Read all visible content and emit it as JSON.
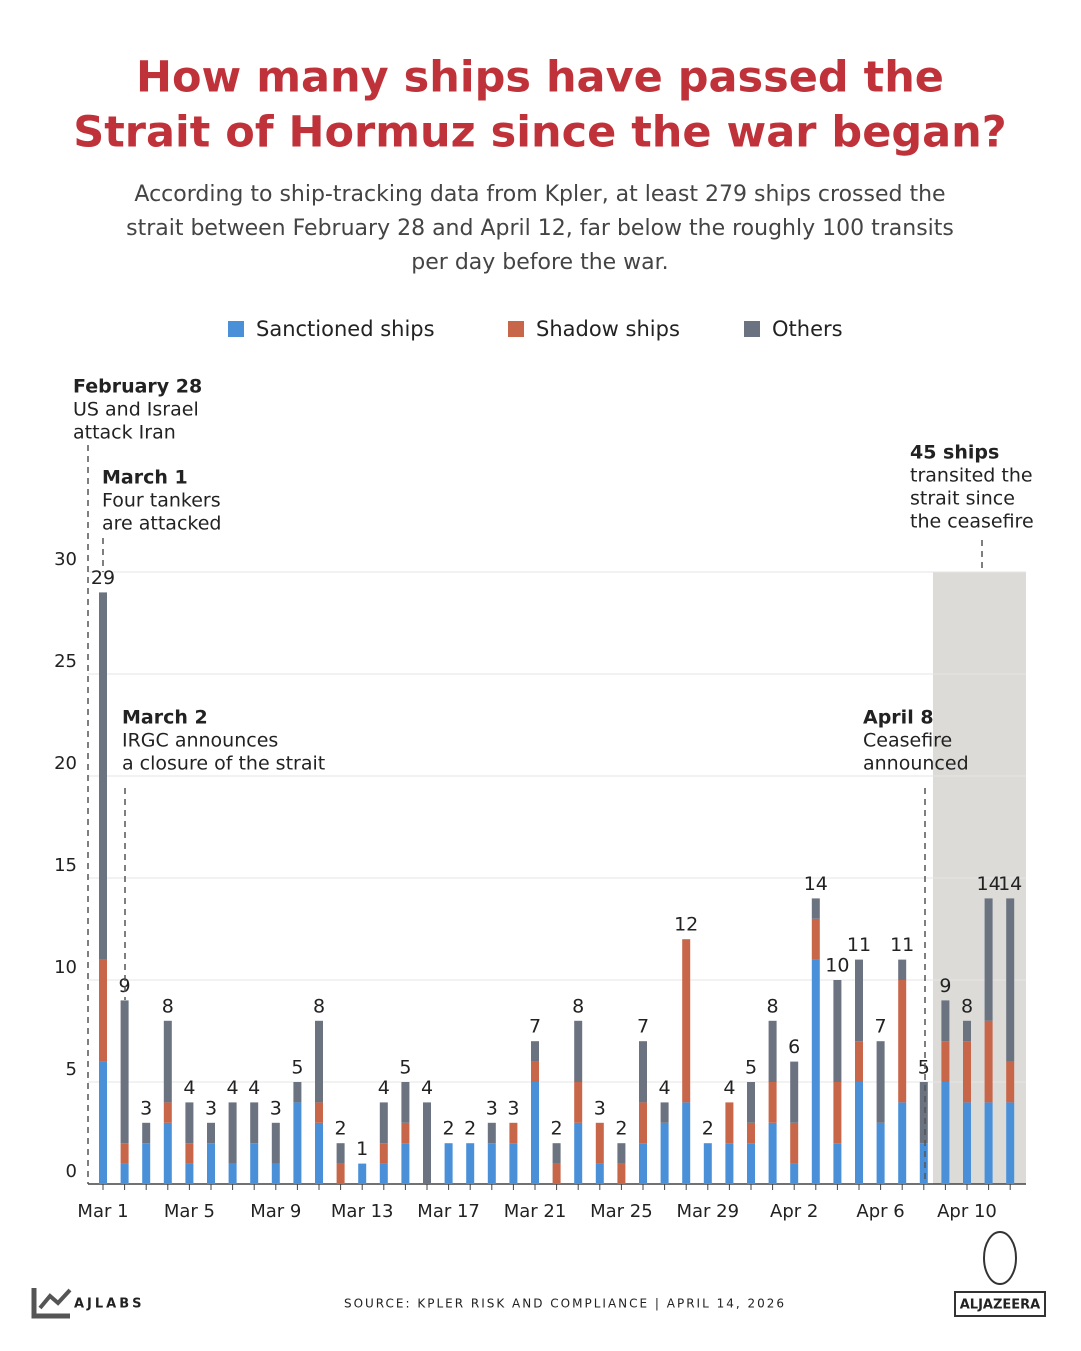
{
  "chart_data": {
    "type": "stacked_bar",
    "title": [
      "How many ships have passed the",
      "Strait of Hormuz since the war began?"
    ],
    "subtitle": [
      "According to ship-tracking data from Kpler, at least 279 ships crossed the",
      "strait between February 28 and April 12, far below the roughly 100 transits",
      "per day before the war."
    ],
    "categories": [
      "Mar 1",
      null,
      null,
      null,
      "Mar 5",
      null,
      null,
      null,
      "Mar 9",
      null,
      null,
      null,
      "Mar 13",
      null,
      null,
      null,
      "Mar 17",
      null,
      null,
      null,
      "Mar 21",
      null,
      null,
      null,
      "Mar 25",
      null,
      null,
      null,
      "Mar 29",
      null,
      null,
      null,
      "Apr 2",
      null,
      null,
      null,
      "Apr 6",
      null,
      null,
      null,
      "Apr 10",
      null,
      null
    ],
    "series": [
      {
        "name": "Sanctioned ships",
        "color": "#4a90d9",
        "values": [
          6,
          1,
          2,
          3,
          1,
          2,
          1,
          2,
          1,
          4,
          3,
          0,
          1,
          1,
          2,
          0,
          2,
          2,
          2,
          2,
          5,
          0,
          3,
          1,
          0,
          2,
          3,
          4,
          2,
          2,
          2,
          3,
          1,
          11,
          2,
          5,
          3,
          4,
          2,
          5,
          4,
          4,
          4
        ]
      },
      {
        "name": "Shadow ships",
        "color": "#c8664a",
        "values": [
          5,
          1,
          0,
          1,
          1,
          0,
          0,
          0,
          0,
          0,
          1,
          1,
          0,
          1,
          1,
          0,
          0,
          0,
          0,
          1,
          1,
          1,
          2,
          2,
          1,
          2,
          0,
          8,
          0,
          2,
          1,
          2,
          2,
          2,
          3,
          2,
          0,
          6,
          0,
          2,
          3,
          4,
          2
        ]
      },
      {
        "name": "Others",
        "color": "#6b7380",
        "values": [
          18,
          7,
          1,
          4,
          2,
          1,
          3,
          2,
          2,
          1,
          4,
          1,
          0,
          2,
          2,
          4,
          0,
          0,
          1,
          0,
          1,
          1,
          3,
          0,
          1,
          3,
          1,
          0,
          0,
          0,
          2,
          3,
          3,
          1,
          5,
          4,
          4,
          1,
          3,
          2,
          1,
          6,
          8
        ]
      }
    ],
    "totals": [
      29,
      9,
      3,
      8,
      4,
      3,
      4,
      4,
      3,
      5,
      8,
      2,
      1,
      4,
      5,
      4,
      2,
      2,
      3,
      3,
      7,
      2,
      8,
      3,
      2,
      7,
      4,
      12,
      2,
      4,
      5,
      8,
      6,
      14,
      10,
      11,
      7,
      11,
      5,
      9,
      8,
      14,
      14
    ],
    "ylim": [
      0,
      30
    ],
    "yticks": [
      0,
      5,
      10,
      15,
      20,
      25,
      30
    ],
    "grid": true,
    "annotations": [
      {
        "title": "February 28",
        "lines": [
          "US and Israel",
          "attack Iran"
        ]
      },
      {
        "title": "March 1",
        "lines": [
          "Four tankers",
          "are attacked"
        ]
      },
      {
        "title": "March 2",
        "lines": [
          "IRGC announces",
          "a closure of the strait"
        ]
      },
      {
        "title": "April 8",
        "lines": [
          "Ceasefire",
          "announced"
        ]
      },
      {
        "title": "45 ships",
        "lines": [
          "transited the",
          "strait since",
          "the ceasefire"
        ]
      }
    ]
  },
  "footer": {
    "brand": "AJLABS",
    "source": "SOURCE:  KPLER RISK AND COMPLIANCE  |  APRIL 14, 2026",
    "logo": "ALJAZEERA"
  }
}
